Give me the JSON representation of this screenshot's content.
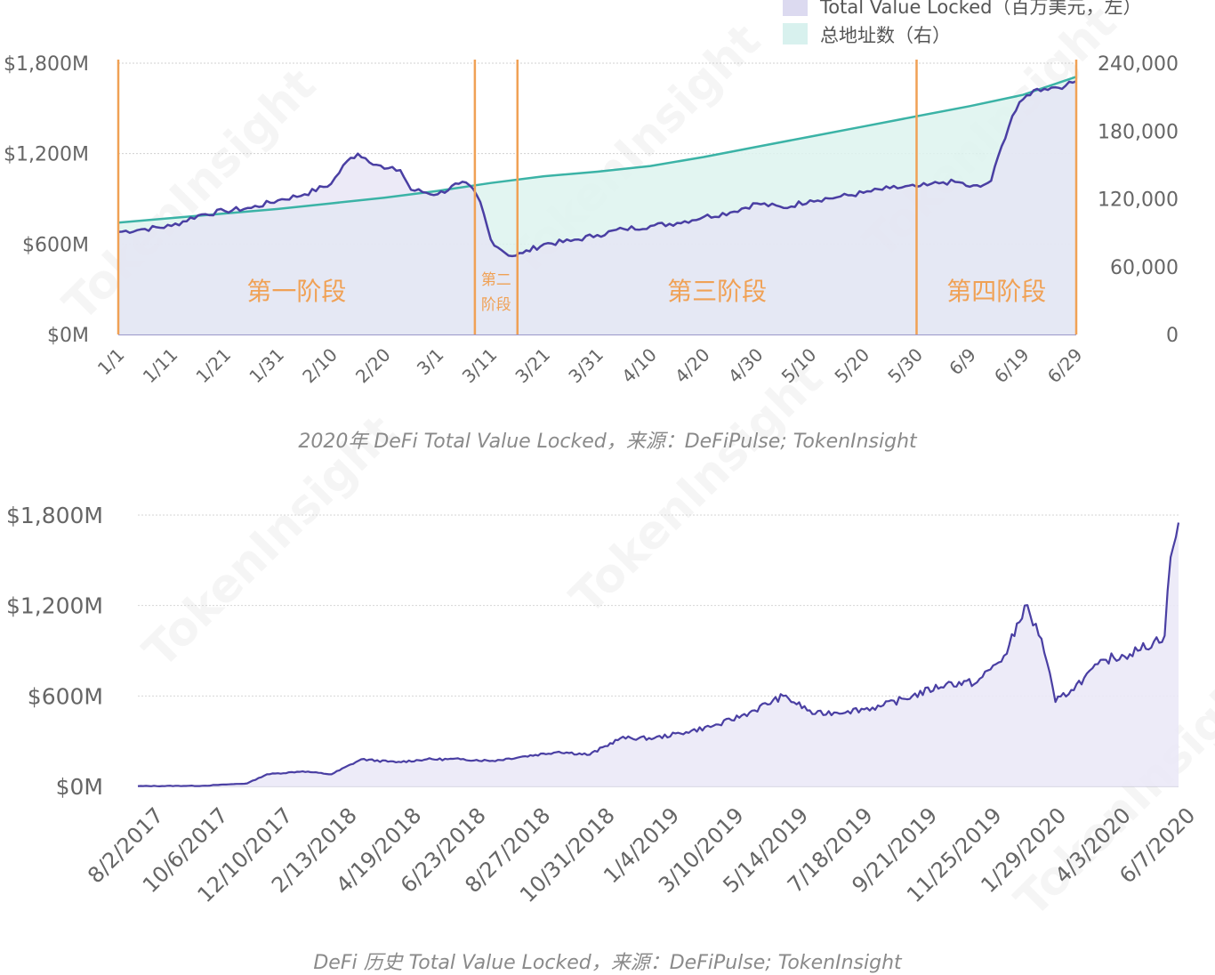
{
  "watermark": "TokenInsight",
  "chart_data": [
    {
      "type": "area",
      "caption": "2020年 DeFi Total Value Locked，来源：DeFiPulse; TokenInsight",
      "x_ticks": [
        "1/1",
        "1/11",
        "1/21",
        "1/31",
        "2/10",
        "2/20",
        "3/1",
        "3/11",
        "3/21",
        "3/31",
        "4/10",
        "4/20",
        "4/30",
        "5/10",
        "5/20",
        "5/30",
        "6/9",
        "6/19",
        "6/29"
      ],
      "y_left_ticks": [
        "$1,800M",
        "$1,200M",
        "$600M",
        "$0M"
      ],
      "y_left_range": [
        0,
        1800
      ],
      "y_right_ticks": [
        "240,000",
        "180,000",
        "120,000",
        "60,000",
        "0"
      ],
      "y_right_range": [
        0,
        240000
      ],
      "legend": {
        "position": "top-right",
        "items": [
          {
            "label": "Total Value Locked（百万美元，左）",
            "color": "#dcdaf0"
          },
          {
            "label": "总地址数（右）",
            "color": "#d8f1ee"
          }
        ]
      },
      "colors": {
        "tvl_line": "#4a3fa3",
        "tvl_fill": "#e6e3f4",
        "addr_line": "#3bb3a6",
        "addr_fill": "#ddf3ef",
        "phase_line": "#f0a155",
        "phase_text": "#f0a155"
      },
      "phases": [
        {
          "label": "第一阶段",
          "start": "1/1",
          "end": "3/8"
        },
        {
          "label": "第二\n阶段",
          "start": "3/8",
          "end": "3/16"
        },
        {
          "label": "第三阶段",
          "start": "3/16",
          "end": "5/30"
        },
        {
          "label": "第四阶段",
          "start": "5/30",
          "end": "6/29"
        }
      ],
      "series": [
        {
          "name": "Total Value Locked",
          "axis": "left",
          "unit": "$M",
          "x": [
            "1/1",
            "1/6",
            "1/11",
            "1/16",
            "1/21",
            "1/26",
            "1/31",
            "2/5",
            "2/10",
            "2/13",
            "2/15",
            "2/20",
            "2/23",
            "2/25",
            "3/1",
            "3/5",
            "3/7",
            "3/9",
            "3/11",
            "3/13",
            "3/15",
            "3/17",
            "3/21",
            "3/26",
            "3/31",
            "4/5",
            "4/10",
            "4/15",
            "4/20",
            "4/25",
            "4/30",
            "5/5",
            "5/10",
            "5/15",
            "5/20",
            "5/25",
            "5/30",
            "6/1",
            "6/4",
            "6/7",
            "6/9",
            "6/11",
            "6/13",
            "6/15",
            "6/17",
            "6/19",
            "6/21",
            "6/23",
            "6/25",
            "6/27",
            "6/29"
          ],
          "values": [
            680,
            700,
            720,
            790,
            820,
            840,
            890,
            930,
            1000,
            1150,
            1200,
            1100,
            1090,
            960,
            930,
            1000,
            990,
            880,
            630,
            560,
            520,
            540,
            600,
            620,
            660,
            700,
            720,
            740,
            780,
            810,
            870,
            840,
            890,
            910,
            940,
            970,
            980,
            990,
            1010,
            1010,
            980,
            980,
            1020,
            1250,
            1450,
            1560,
            1620,
            1630,
            1640,
            1650,
            1680
          ]
        },
        {
          "name": "总地址数",
          "axis": "right",
          "unit": "addresses",
          "x": [
            "1/1",
            "1/11",
            "1/21",
            "1/31",
            "2/10",
            "2/20",
            "3/1",
            "3/11",
            "3/21",
            "3/31",
            "4/10",
            "4/20",
            "4/30",
            "5/10",
            "5/20",
            "5/30",
            "6/9",
            "6/19",
            "6/29"
          ],
          "values": [
            99000,
            103000,
            107000,
            111000,
            116000,
            121000,
            127000,
            134000,
            140000,
            144000,
            149000,
            157000,
            166000,
            175000,
            184000,
            193000,
            202000,
            212000,
            228000
          ]
        }
      ]
    },
    {
      "type": "area",
      "caption": "DeFi 历史 Total Value Locked，来源：DeFiPulse; TokenInsight",
      "x_ticks": [
        "8/2/2017",
        "10/6/2017",
        "12/10/2017",
        "2/13/2018",
        "4/19/2018",
        "6/23/2018",
        "8/27/2018",
        "10/31/2018",
        "1/4/2019",
        "3/10/2019",
        "5/14/2019",
        "7/18/2019",
        "9/21/2019",
        "11/25/2019",
        "1/29/2020",
        "4/3/2020",
        "6/7/2020"
      ],
      "y_ticks": [
        "$1,800M",
        "$1,200M",
        "$600M",
        "$0M"
      ],
      "y_range": [
        0,
        1800
      ],
      "colors": {
        "line": "#4a3fa3",
        "fill": "#ebe9f7"
      },
      "series": [
        {
          "name": "Total Value Locked",
          "unit": "$M",
          "x": [
            "8/2/2017",
            "10/6/2017",
            "11/20/2017",
            "12/10/2017",
            "1/15/2018",
            "2/13/2018",
            "3/15/2018",
            "4/19/2018",
            "5/20/2018",
            "6/23/2018",
            "7/25/2018",
            "8/27/2018",
            "9/30/2018",
            "10/31/2018",
            "12/1/2018",
            "1/4/2019",
            "2/5/2019",
            "3/10/2019",
            "4/10/2019",
            "5/14/2019",
            "6/15/2019",
            "7/18/2019",
            "8/20/2019",
            "9/21/2019",
            "10/25/2019",
            "11/25/2019",
            "12/25/2019",
            "1/12/2020",
            "1/29/2020",
            "2/12/2020",
            "2/28/2020",
            "3/12/2020",
            "4/3/2020",
            "5/5/2020",
            "6/1/2020",
            "6/7/2020",
            "6/15/2020"
          ],
          "values": [
            2,
            4,
            20,
            80,
            100,
            80,
            180,
            160,
            180,
            180,
            170,
            200,
            230,
            210,
            320,
            320,
            360,
            410,
            490,
            600,
            480,
            500,
            530,
            600,
            680,
            690,
            880,
            1200,
            980,
            560,
            640,
            720,
            840,
            900,
            1000,
            1520,
            1750
          ]
        }
      ]
    }
  ]
}
